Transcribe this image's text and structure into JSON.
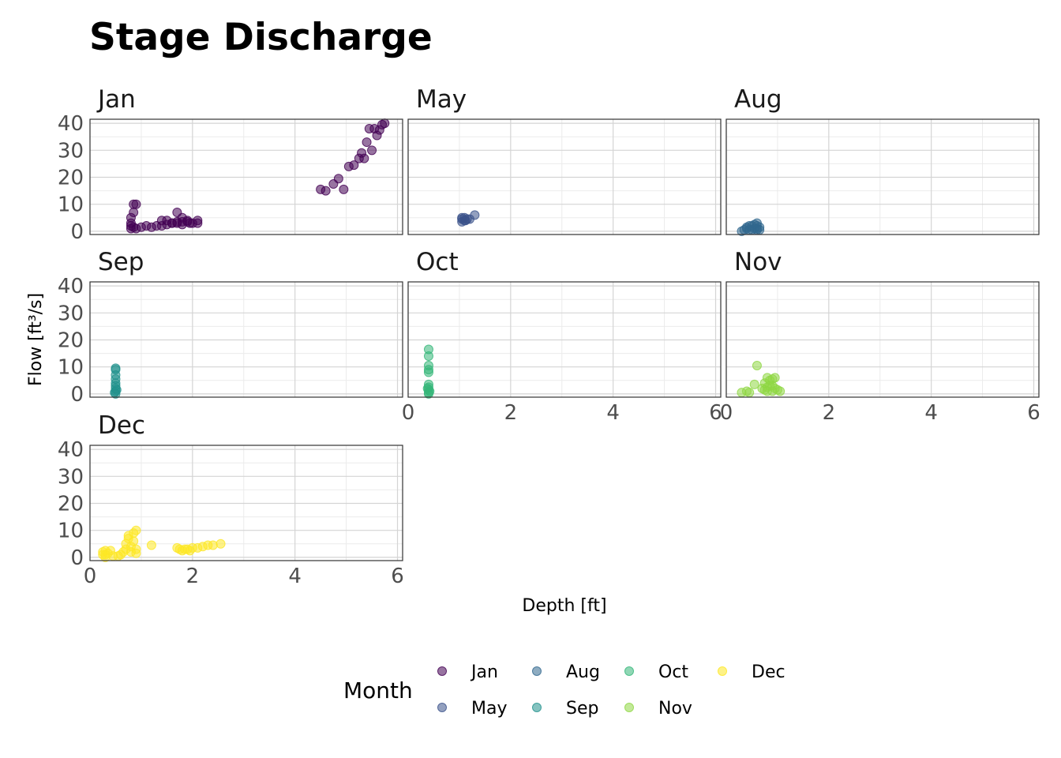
{
  "chart_data": {
    "type": "scatter",
    "title": "Stage Discharge",
    "xlabel": "Depth [ft]",
    "ylabel": "Flow [ft³/s]",
    "xlim": [
      0,
      6.1
    ],
    "ylim": [
      -1.2,
      41.5
    ],
    "x_ticks": [
      0,
      2,
      4,
      6
    ],
    "x_tick_labels": [
      "0",
      "2",
      "4",
      "6"
    ],
    "y_ticks": [
      0,
      10,
      20,
      30,
      40
    ],
    "y_tick_labels": [
      "0",
      "10",
      "20",
      "30",
      "40"
    ],
    "grid": true,
    "legend": {
      "title": "Month",
      "placement": "bottom",
      "entries": [
        "Jan",
        "May",
        "Aug",
        "Sep",
        "Oct",
        "Nov",
        "Dec"
      ]
    },
    "panels": [
      {
        "name": "Jan",
        "color": "#440154",
        "points": [
          [
            0.8,
            1
          ],
          [
            0.8,
            3
          ],
          [
            0.8,
            5
          ],
          [
            0.85,
            7
          ],
          [
            0.85,
            10
          ],
          [
            0.9,
            10
          ],
          [
            0.8,
            2
          ],
          [
            0.85,
            1.5
          ],
          [
            0.9,
            1
          ],
          [
            1.0,
            1.5
          ],
          [
            1.1,
            2
          ],
          [
            1.2,
            1.5
          ],
          [
            1.3,
            2
          ],
          [
            1.4,
            2
          ],
          [
            1.5,
            2.5
          ],
          [
            1.6,
            3
          ],
          [
            1.7,
            3
          ],
          [
            1.8,
            3.5
          ],
          [
            1.4,
            4
          ],
          [
            1.5,
            4
          ],
          [
            1.6,
            3
          ],
          [
            1.7,
            3.5
          ],
          [
            1.8,
            2.5
          ],
          [
            1.9,
            4
          ],
          [
            2.0,
            3
          ],
          [
            2.1,
            3
          ],
          [
            1.7,
            7
          ],
          [
            1.8,
            5
          ],
          [
            1.9,
            3.5
          ],
          [
            2.1,
            4
          ],
          [
            1.95,
            3
          ],
          [
            4.5,
            15.5
          ],
          [
            4.6,
            15
          ],
          [
            4.75,
            17.5
          ],
          [
            4.85,
            19.5
          ],
          [
            4.95,
            15.5
          ],
          [
            5.05,
            24
          ],
          [
            5.15,
            24.5
          ],
          [
            5.25,
            27
          ],
          [
            5.3,
            29
          ],
          [
            5.35,
            27
          ],
          [
            5.4,
            33
          ],
          [
            5.45,
            38
          ],
          [
            5.5,
            30
          ],
          [
            5.55,
            38
          ],
          [
            5.6,
            35.5
          ],
          [
            5.65,
            37.5
          ],
          [
            5.7,
            39.5
          ],
          [
            5.75,
            40
          ]
        ]
      },
      {
        "name": "May",
        "color": "#3b528b",
        "points": [
          [
            1.05,
            3.5
          ],
          [
            1.05,
            4.5
          ],
          [
            1.1,
            5
          ],
          [
            1.12,
            4
          ],
          [
            1.15,
            4.5
          ],
          [
            1.2,
            4.5
          ],
          [
            1.05,
            5
          ],
          [
            1.1,
            4
          ],
          [
            1.3,
            6
          ]
        ]
      },
      {
        "name": "Aug",
        "color": "#31688e",
        "points": [
          [
            0.3,
            0
          ],
          [
            0.35,
            0.5
          ],
          [
            0.4,
            1
          ],
          [
            0.4,
            1.5
          ],
          [
            0.45,
            2
          ],
          [
            0.5,
            2
          ],
          [
            0.55,
            1
          ],
          [
            0.6,
            2
          ],
          [
            0.6,
            1
          ],
          [
            0.65,
            1.5
          ],
          [
            0.6,
            3
          ],
          [
            0.6,
            0.5
          ],
          [
            0.5,
            0.5
          ],
          [
            0.55,
            2.5
          ],
          [
            0.45,
            0.5
          ],
          [
            0.65,
            0.5
          ]
        ]
      },
      {
        "name": "Sep",
        "color": "#21918c",
        "points": [
          [
            0.5,
            0
          ],
          [
            0.5,
            1
          ],
          [
            0.5,
            2
          ],
          [
            0.5,
            3
          ],
          [
            0.5,
            4
          ],
          [
            0.5,
            5.5
          ],
          [
            0.5,
            7
          ],
          [
            0.5,
            9
          ],
          [
            0.5,
            9.5
          ],
          [
            0.48,
            0.5
          ],
          [
            0.52,
            1.5
          ]
        ]
      },
      {
        "name": "Oct",
        "color": "#35b779",
        "points": [
          [
            0.4,
            16.5
          ],
          [
            0.4,
            14
          ],
          [
            0.4,
            10.5
          ],
          [
            0.4,
            9
          ],
          [
            0.4,
            8
          ],
          [
            0.4,
            3.5
          ],
          [
            0.4,
            2.5
          ],
          [
            0.4,
            1.5
          ],
          [
            0.4,
            0.5
          ],
          [
            0.4,
            0
          ],
          [
            0.42,
            1
          ],
          [
            0.38,
            2
          ]
        ]
      },
      {
        "name": "Nov",
        "color": "#8fd744",
        "points": [
          [
            0.3,
            0.5
          ],
          [
            0.4,
            1
          ],
          [
            0.45,
            0.5
          ],
          [
            0.55,
            3.5
          ],
          [
            0.6,
            10.5
          ],
          [
            0.7,
            2
          ],
          [
            0.75,
            1.5
          ],
          [
            0.75,
            4
          ],
          [
            0.8,
            6
          ],
          [
            0.8,
            2.5
          ],
          [
            0.85,
            3
          ],
          [
            0.85,
            5
          ],
          [
            0.9,
            3
          ],
          [
            0.9,
            5.5
          ],
          [
            0.95,
            2
          ],
          [
            0.95,
            6
          ],
          [
            1.0,
            1.5
          ],
          [
            1.05,
            1
          ],
          [
            0.8,
            1
          ],
          [
            0.9,
            1
          ]
        ]
      },
      {
        "name": "Dec",
        "color": "#fde725",
        "points": [
          [
            0.25,
            1
          ],
          [
            0.25,
            2
          ],
          [
            0.3,
            0
          ],
          [
            0.3,
            1
          ],
          [
            0.3,
            2.5
          ],
          [
            0.35,
            1.5
          ],
          [
            0.4,
            2.5
          ],
          [
            0.45,
            0.5
          ],
          [
            0.55,
            0.5
          ],
          [
            0.6,
            1
          ],
          [
            0.65,
            2
          ],
          [
            0.7,
            3
          ],
          [
            0.7,
            5
          ],
          [
            0.75,
            7
          ],
          [
            0.75,
            8
          ],
          [
            0.8,
            2
          ],
          [
            0.8,
            4
          ],
          [
            0.85,
            6
          ],
          [
            0.85,
            9
          ],
          [
            0.9,
            1.5
          ],
          [
            0.9,
            10
          ],
          [
            0.9,
            3
          ],
          [
            1.2,
            4.5
          ],
          [
            1.75,
            3
          ],
          [
            1.8,
            2.5
          ],
          [
            1.85,
            3
          ],
          [
            1.9,
            3
          ],
          [
            2.0,
            3.5
          ],
          [
            2.1,
            3.5
          ],
          [
            2.2,
            4
          ],
          [
            2.3,
            4.5
          ],
          [
            2.4,
            4.5
          ],
          [
            2.55,
            5
          ],
          [
            1.7,
            3.5
          ],
          [
            1.95,
            2.5
          ]
        ]
      }
    ]
  }
}
